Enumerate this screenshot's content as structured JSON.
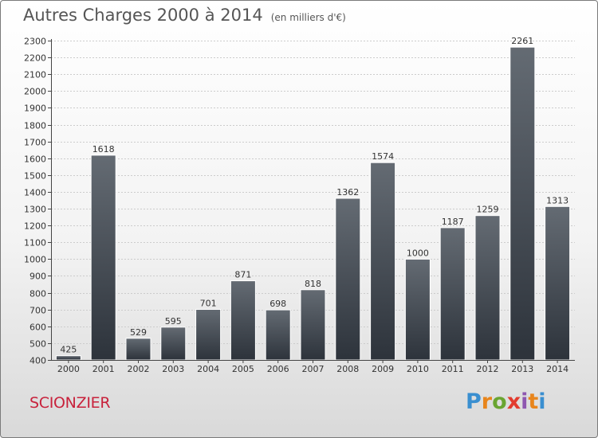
{
  "title": "Autres Charges 2000 à 2014",
  "subtitle": "(en milliers d'€)",
  "commune": "SCIONZIER",
  "logo": {
    "letters": [
      "P",
      "r",
      "o",
      "x",
      "i",
      "t",
      "i"
    ],
    "colors": [
      "#3a8fd0",
      "#e8851c",
      "#6aa531",
      "#e23b2e",
      "#8e57b0",
      "#e8851c",
      "#3a8fd0"
    ]
  },
  "colors": {
    "bar_top": "#646b73",
    "bar_bottom": "#2d333b",
    "grid": "#cccccc",
    "commune": "#c8223c"
  },
  "chart_data": {
    "type": "bar",
    "categories": [
      "2000",
      "2001",
      "2002",
      "2003",
      "2004",
      "2005",
      "2006",
      "2007",
      "2008",
      "2009",
      "2010",
      "2011",
      "2012",
      "2013",
      "2014"
    ],
    "values": [
      425,
      1618,
      529,
      595,
      701,
      871,
      698,
      818,
      1362,
      1574,
      1000,
      1187,
      1259,
      2261,
      1313
    ],
    "ylim": [
      400,
      2300
    ],
    "yticks": [
      400,
      500,
      600,
      700,
      800,
      900,
      1000,
      1100,
      1200,
      1300,
      1400,
      1500,
      1600,
      1700,
      1800,
      1900,
      2000,
      2100,
      2200,
      2300
    ],
    "grid": true
  }
}
